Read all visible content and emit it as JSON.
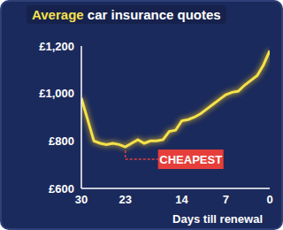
{
  "chart_data": {
    "type": "line",
    "title": "Average car insurance quotes",
    "x_label": "Days till renewal",
    "x": [
      30,
      29,
      28,
      27,
      26,
      25,
      24,
      23,
      22,
      21,
      20,
      19,
      18,
      17,
      16,
      15,
      14,
      13,
      12,
      11,
      10,
      9,
      8,
      7,
      6,
      5,
      4,
      3,
      2,
      1,
      0
    ],
    "values": [
      980,
      890,
      800,
      790,
      785,
      790,
      785,
      775,
      790,
      805,
      790,
      800,
      800,
      805,
      840,
      845,
      885,
      890,
      900,
      915,
      935,
      955,
      975,
      995,
      1005,
      1010,
      1035,
      1055,
      1075,
      1120,
      1180
    ],
    "color": "#f5e14b",
    "xlim": [
      30,
      0
    ],
    "xticks": [
      30,
      23,
      14,
      7,
      0
    ],
    "ylim": [
      600,
      1200
    ],
    "yticks": [
      {
        "value": 600,
        "label": "£600"
      },
      {
        "value": 800,
        "label": "£800"
      },
      {
        "value": 1000,
        "label": "£1,000"
      },
      {
        "value": 1200,
        "label": "£1,200"
      }
    ],
    "grid": false,
    "annotations": [
      {
        "text": "CHEAPEST",
        "x": 23,
        "y": 775,
        "color": "#e63e3a"
      }
    ]
  }
}
